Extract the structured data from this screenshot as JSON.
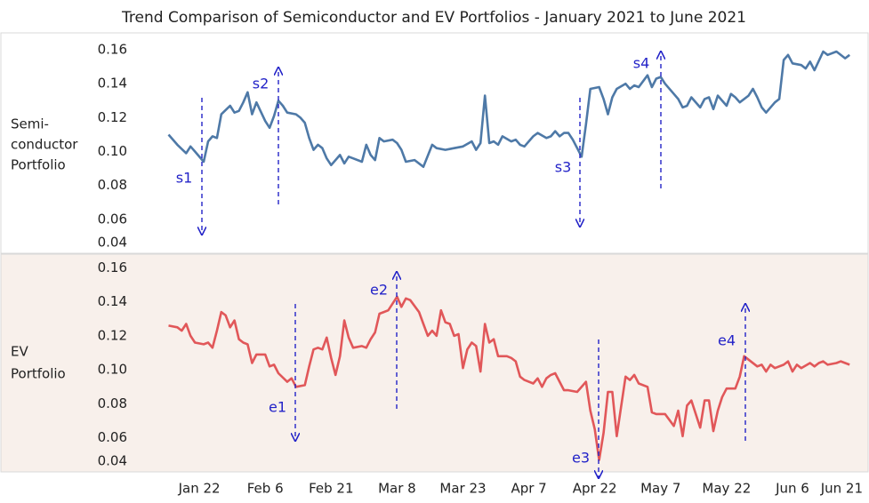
{
  "title": "Trend Comparison of Semiconductor and EV Portfolios  - January 2021 to June 2021",
  "chart_data": [
    {
      "type": "line",
      "ylabel": [
        "Semi-",
        "conductor",
        "Portfolio"
      ],
      "color": "#4e79a7",
      "background": "#ffffff",
      "xlim": [
        7,
        173
      ],
      "ylim": [
        0.04,
        0.17
      ],
      "yticks": [
        0.04,
        0.06,
        0.08,
        {
          "value": 0.1,
          "label": "0.10"
        },
        0.12,
        0.14,
        0.16
      ],
      "annotations": [
        "s1",
        "s2",
        "s3",
        "s4"
      ],
      "x": [
        15,
        17,
        19,
        20,
        21,
        23,
        24,
        25,
        26,
        27,
        29,
        30,
        31,
        32,
        33,
        34,
        35,
        37,
        38,
        39,
        40,
        41,
        42,
        44,
        45,
        46,
        47,
        48,
        49,
        50,
        51,
        52,
        54,
        55,
        56,
        57,
        59,
        60,
        61,
        62,
        63,
        64,
        66,
        67,
        68,
        69,
        71,
        73,
        75,
        76,
        78,
        80,
        82,
        84,
        85,
        86,
        87,
        88,
        89,
        90,
        91,
        93,
        94,
        95,
        96,
        98,
        99,
        101,
        102,
        103,
        104,
        105,
        106,
        107,
        109,
        110,
        111,
        113,
        114,
        115,
        116,
        117,
        119,
        120,
        121,
        122,
        124,
        125,
        126,
        127,
        128,
        130,
        131,
        132,
        133,
        134,
        136,
        137,
        138,
        139,
        140,
        142,
        143,
        144,
        145,
        147,
        148,
        149,
        150,
        151,
        153,
        154,
        155,
        156,
        157,
        159,
        160,
        161,
        162,
        164,
        165,
        167,
        169,
        170
      ],
      "values": [
        0.11,
        0.104,
        0.099,
        0.103,
        0.1,
        0.094,
        0.106,
        0.109,
        0.108,
        0.122,
        0.127,
        0.123,
        0.124,
        0.129,
        0.135,
        0.122,
        0.129,
        0.118,
        0.114,
        0.121,
        0.13,
        0.127,
        0.123,
        0.122,
        0.12,
        0.117,
        0.108,
        0.101,
        0.104,
        0.102,
        0.096,
        0.092,
        0.098,
        0.093,
        0.097,
        0.096,
        0.094,
        0.104,
        0.098,
        0.095,
        0.108,
        0.106,
        0.107,
        0.105,
        0.101,
        0.094,
        0.095,
        0.091,
        0.104,
        0.102,
        0.101,
        0.102,
        0.103,
        0.106,
        0.101,
        0.105,
        0.133,
        0.105,
        0.106,
        0.104,
        0.109,
        0.106,
        0.107,
        0.104,
        0.103,
        0.109,
        0.111,
        0.108,
        0.109,
        0.112,
        0.109,
        0.111,
        0.111,
        0.107,
        0.097,
        0.116,
        0.137,
        0.138,
        0.131,
        0.122,
        0.132,
        0.137,
        0.14,
        0.137,
        0.139,
        0.138,
        0.145,
        0.138,
        0.143,
        0.144,
        0.14,
        0.134,
        0.131,
        0.126,
        0.127,
        0.132,
        0.126,
        0.131,
        0.132,
        0.125,
        0.133,
        0.127,
        0.134,
        0.132,
        0.129,
        0.133,
        0.137,
        0.132,
        0.126,
        0.123,
        0.129,
        0.131,
        0.154,
        0.157,
        0.152,
        0.151,
        0.149,
        0.153,
        0.148,
        0.159,
        0.157,
        0.159,
        0.155,
        0.157
      ]
    },
    {
      "type": "line",
      "ylabel": [
        "EV",
        "Portfolio"
      ],
      "color": "#e15759",
      "background": "#f8f0eb",
      "xlim": [
        7,
        173
      ],
      "ylim": [
        0.04,
        0.168
      ],
      "yticks": [
        0.04,
        0.06,
        0.08,
        {
          "value": 0.1,
          "label": "0.10"
        },
        0.12,
        0.14,
        0.16
      ],
      "xticks": [
        {
          "value": 22,
          "label": "Jan 22"
        },
        {
          "value": 37,
          "label": "Feb 6"
        },
        {
          "value": 52,
          "label": "Feb 21"
        },
        {
          "value": 67,
          "label": "Mar 8"
        },
        {
          "value": 82,
          "label": "Mar 23"
        },
        {
          "value": 97,
          "label": "Apr 7"
        },
        {
          "value": 112,
          "label": "Apr 22"
        },
        {
          "value": 127,
          "label": "May 7"
        },
        {
          "value": 142,
          "label": "May 22"
        },
        {
          "value": 157,
          "label": "Jun 6"
        },
        {
          "value": 172,
          "label": "Jun 21"
        }
      ],
      "annotations": [
        "e1",
        "e2",
        "e3",
        "e4"
      ],
      "x": [
        15,
        17,
        18,
        19,
        20,
        21,
        23,
        24,
        25,
        26,
        27,
        28,
        29,
        30,
        31,
        32,
        33,
        34,
        35,
        37,
        38,
        39,
        40,
        42,
        43,
        44,
        46,
        47,
        48,
        49,
        50,
        51,
        52,
        53,
        54,
        55,
        56,
        57,
        59,
        60,
        61,
        62,
        63,
        64,
        65,
        67,
        68,
        69,
        70,
        72,
        73,
        74,
        75,
        76,
        77,
        78,
        79,
        80,
        81,
        82,
        83,
        84,
        85,
        86,
        87,
        88,
        89,
        90,
        92,
        93,
        94,
        95,
        96,
        98,
        99,
        100,
        101,
        102,
        103,
        105,
        106,
        108,
        110,
        111,
        112,
        113,
        114,
        115,
        116,
        117,
        119,
        120,
        121,
        122,
        124,
        125,
        126,
        127,
        128,
        130,
        131,
        132,
        133,
        134,
        136,
        137,
        138,
        139,
        140,
        141,
        142,
        144,
        145,
        146,
        147,
        149,
        150,
        151,
        152,
        153,
        155,
        156,
        157,
        158,
        159,
        161,
        162,
        163,
        164,
        165,
        167,
        168,
        170
      ],
      "values": [
        0.126,
        0.125,
        0.123,
        0.127,
        0.12,
        0.116,
        0.115,
        0.116,
        0.113,
        0.123,
        0.134,
        0.132,
        0.125,
        0.129,
        0.118,
        0.116,
        0.115,
        0.104,
        0.109,
        0.109,
        0.102,
        0.103,
        0.098,
        0.093,
        0.095,
        0.09,
        0.091,
        0.102,
        0.112,
        0.113,
        0.112,
        0.119,
        0.107,
        0.097,
        0.108,
        0.129,
        0.119,
        0.113,
        0.114,
        0.113,
        0.118,
        0.122,
        0.133,
        0.134,
        0.135,
        0.143,
        0.137,
        0.142,
        0.141,
        0.134,
        0.127,
        0.12,
        0.123,
        0.12,
        0.135,
        0.128,
        0.127,
        0.12,
        0.121,
        0.101,
        0.112,
        0.116,
        0.114,
        0.099,
        0.127,
        0.116,
        0.118,
        0.108,
        0.108,
        0.107,
        0.105,
        0.096,
        0.094,
        0.092,
        0.095,
        0.09,
        0.095,
        0.097,
        0.098,
        0.088,
        0.088,
        0.087,
        0.093,
        0.076,
        0.065,
        0.047,
        0.063,
        0.087,
        0.087,
        0.061,
        0.096,
        0.094,
        0.097,
        0.092,
        0.09,
        0.075,
        0.074,
        0.074,
        0.074,
        0.067,
        0.076,
        0.061,
        0.079,
        0.082,
        0.066,
        0.082,
        0.082,
        0.064,
        0.076,
        0.084,
        0.089,
        0.089,
        0.096,
        0.108,
        0.106,
        0.102,
        0.103,
        0.099,
        0.103,
        0.101,
        0.103,
        0.105,
        0.099,
        0.103,
        0.101,
        0.104,
        0.102,
        0.104,
        0.105,
        0.103,
        0.104,
        0.105,
        0.103
      ]
    }
  ]
}
